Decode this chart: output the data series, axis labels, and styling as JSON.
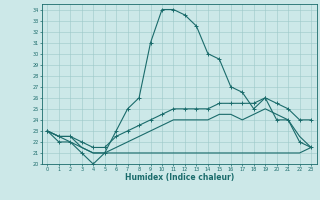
{
  "xlabel": "Humidex (Indice chaleur)",
  "bg_color": "#cce8e8",
  "grid_color": "#9cc8c8",
  "line_color": "#1a6b6b",
  "xlim": [
    -0.5,
    23.5
  ],
  "ylim": [
    20,
    34.5
  ],
  "xticks": [
    0,
    1,
    2,
    3,
    4,
    5,
    6,
    7,
    8,
    9,
    10,
    11,
    12,
    13,
    14,
    15,
    16,
    17,
    18,
    19,
    20,
    21,
    22,
    23
  ],
  "yticks": [
    20,
    21,
    22,
    23,
    24,
    25,
    26,
    27,
    28,
    29,
    30,
    31,
    32,
    33,
    34
  ],
  "series": [
    {
      "x": [
        0,
        1,
        2,
        3,
        4,
        5,
        6,
        7,
        8,
        9,
        10,
        11,
        12,
        13,
        14,
        15,
        16,
        17,
        18,
        19,
        20,
        21,
        22,
        23
      ],
      "y": [
        23,
        22,
        22,
        21,
        20,
        21,
        23,
        25,
        26,
        31,
        34,
        34,
        33.5,
        32.5,
        30,
        29.5,
        27,
        26.5,
        25,
        26,
        24,
        24,
        22,
        21.5
      ],
      "marker": true
    },
    {
      "x": [
        0,
        1,
        2,
        3,
        4,
        5,
        6,
        7,
        8,
        9,
        10,
        11,
        12,
        13,
        14,
        15,
        16,
        17,
        18,
        19,
        20,
        21,
        22,
        23
      ],
      "y": [
        23,
        22.5,
        22.5,
        22,
        21.5,
        21.5,
        22.5,
        23,
        23.5,
        24,
        24.5,
        25,
        25,
        25,
        25,
        25.5,
        25.5,
        25.5,
        25.5,
        26,
        25.5,
        25,
        24,
        24
      ],
      "marker": true
    },
    {
      "x": [
        0,
        1,
        2,
        3,
        4,
        5,
        6,
        7,
        8,
        9,
        10,
        11,
        12,
        13,
        14,
        15,
        16,
        17,
        18,
        19,
        20,
        21,
        22,
        23
      ],
      "y": [
        23,
        22.5,
        22.5,
        21.5,
        21,
        21,
        21.5,
        22,
        22.5,
        23,
        23.5,
        24,
        24,
        24,
        24,
        24.5,
        24.5,
        24,
        24.5,
        25,
        24.5,
        24,
        22.5,
        21.5
      ],
      "marker": false
    },
    {
      "x": [
        0,
        3,
        4,
        5,
        19,
        22,
        23
      ],
      "y": [
        23,
        21.5,
        21,
        21,
        21,
        21,
        21.5
      ],
      "marker": false
    }
  ]
}
